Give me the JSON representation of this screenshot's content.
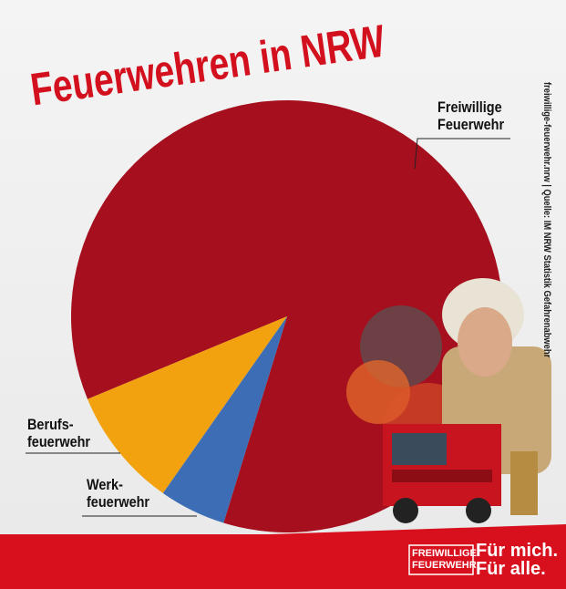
{
  "chart_data": {
    "type": "pie",
    "title": "Feuerwehren in NRW",
    "categories": [
      "Freiwillige\nFeuerwehr",
      "Werk-\nfeuerwehr",
      "Berufs-\nfeuerwehr"
    ],
    "values": [
      86,
      5,
      9
    ],
    "colors": [
      "#a50f1e",
      "#3d6db5",
      "#f2a20f"
    ],
    "source": "freiwillige-feuerwehr.nrw  |  Quelle: IM NRW Statistik Gefahrenabwehr"
  },
  "footer": {
    "logo": [
      "FREIWILLIGE",
      "FEUERWEHR"
    ],
    "slogan": [
      "Für mich.",
      "Für alle."
    ]
  }
}
